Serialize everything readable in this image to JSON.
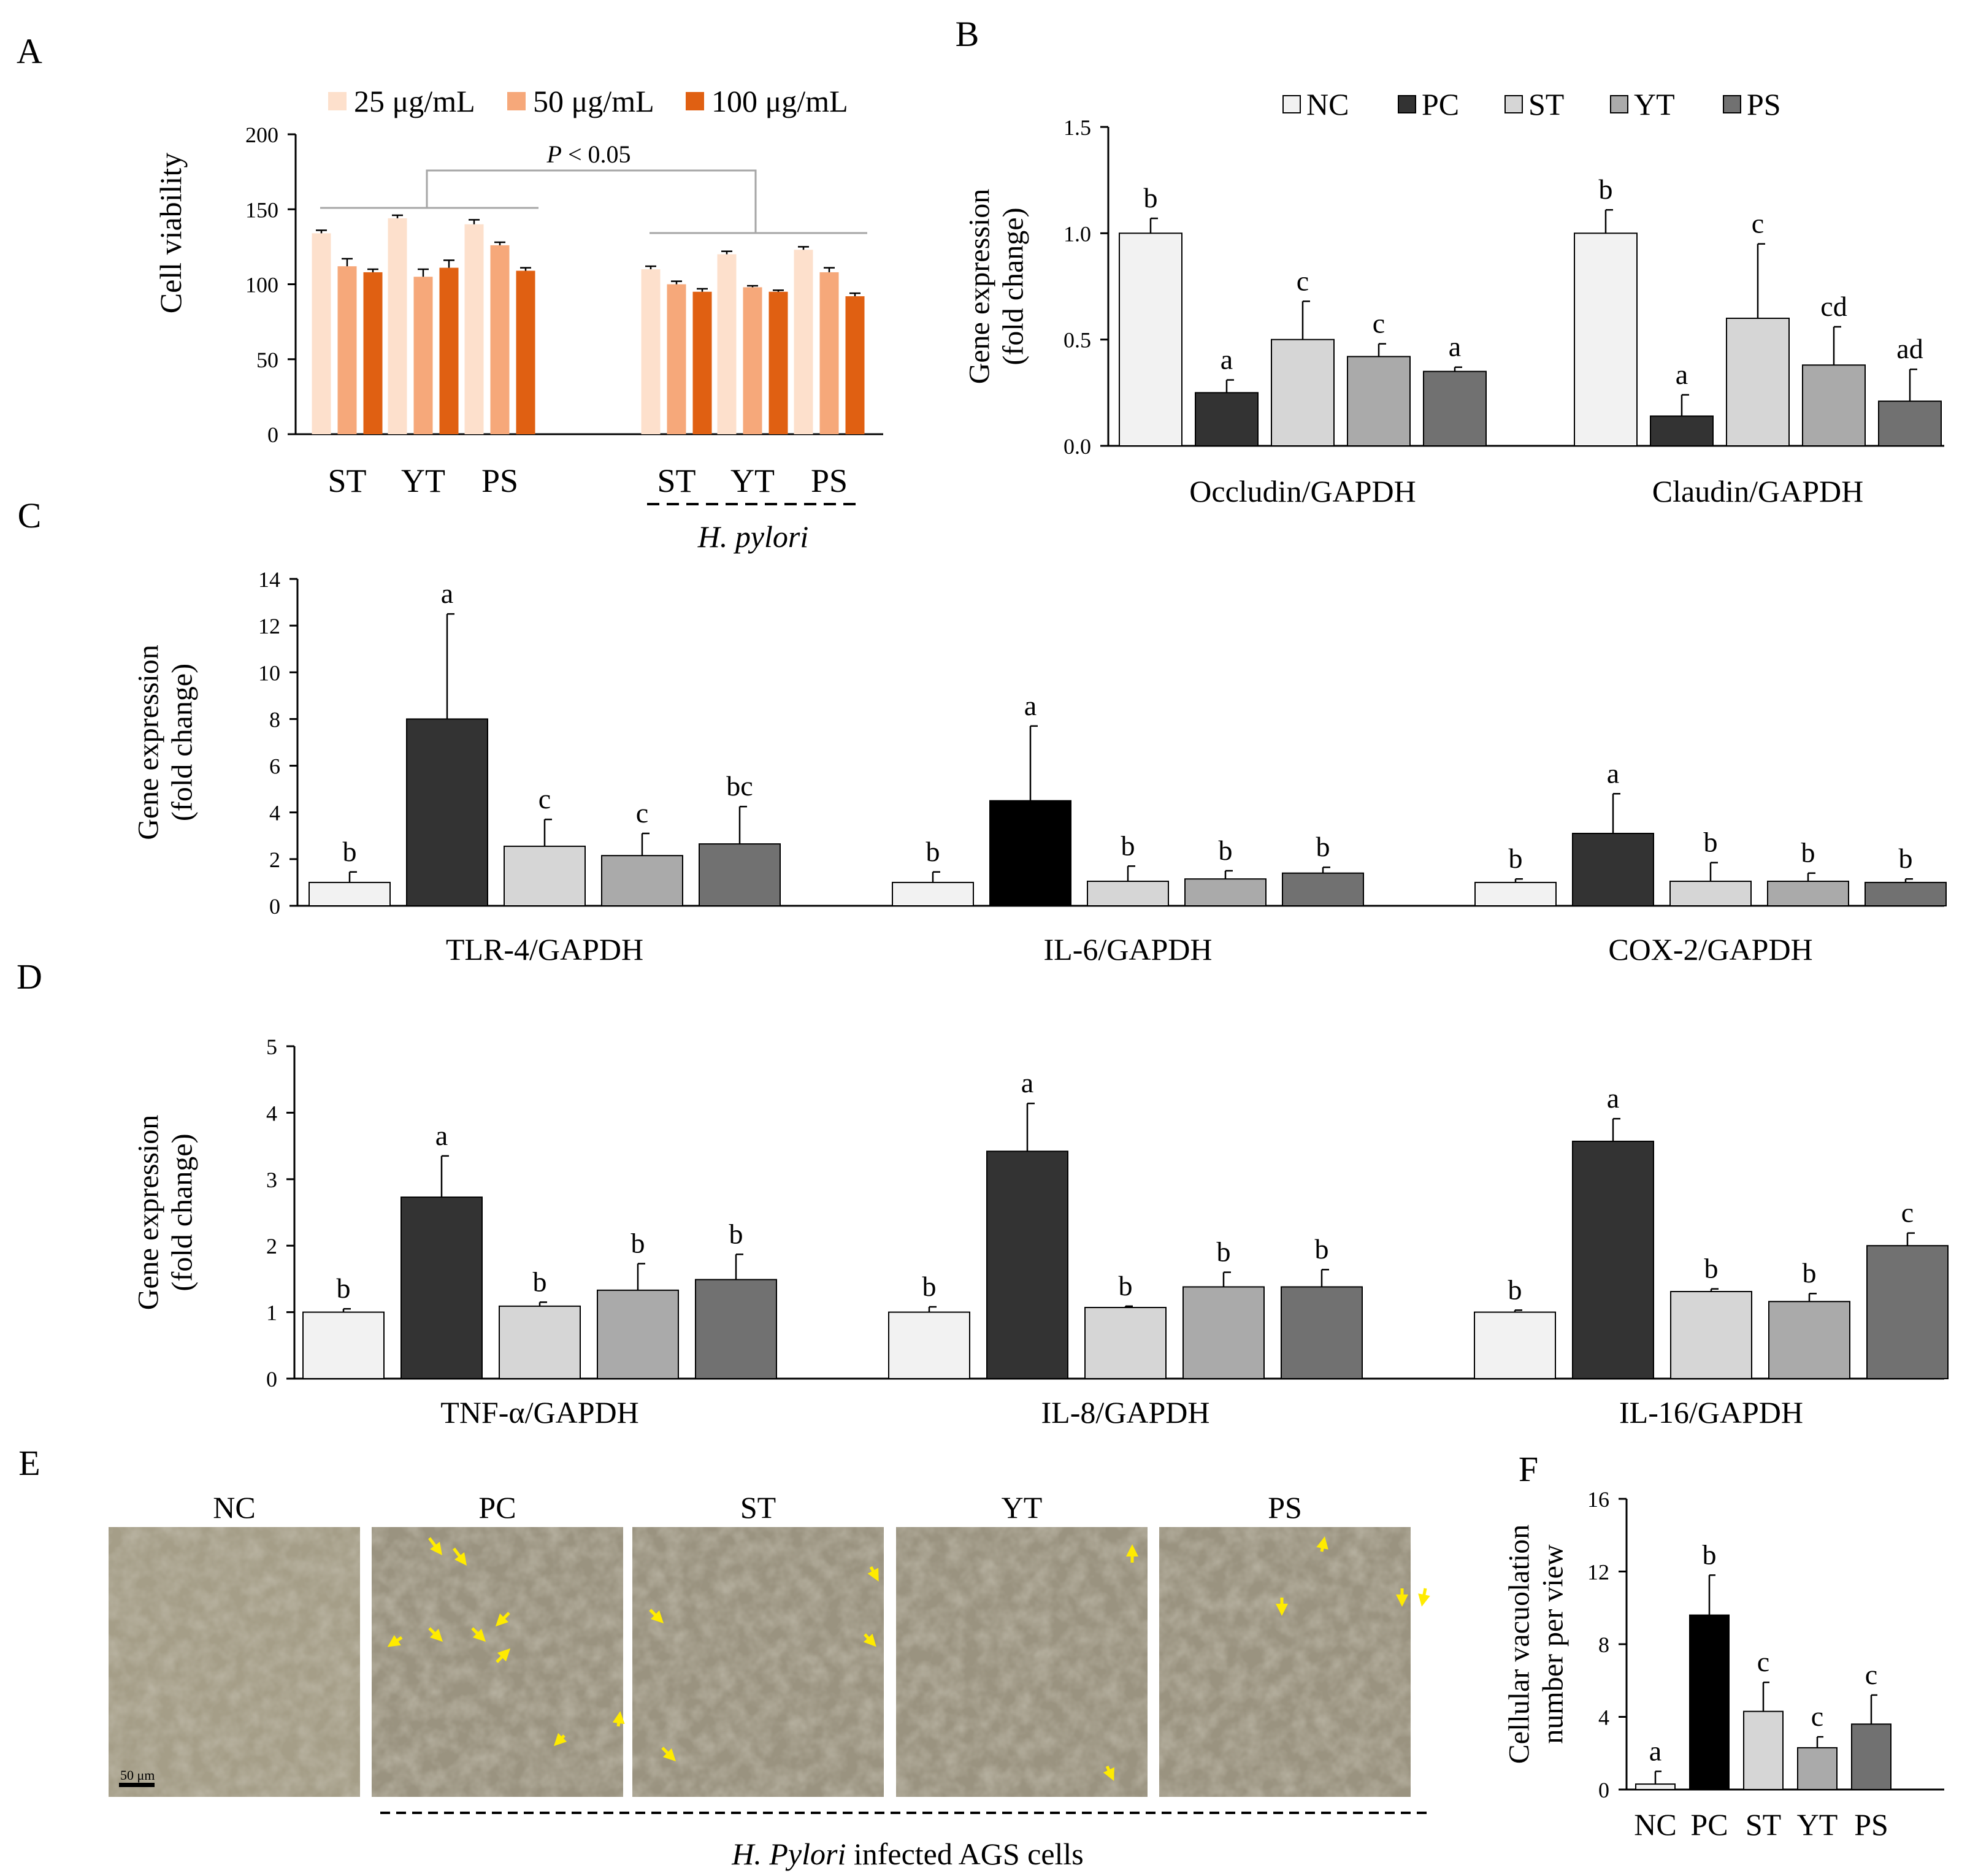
{
  "colors": {
    "dose25": "#fde0cc",
    "dose50": "#f6a87a",
    "dose100": "#e06012",
    "NC": "#f2f2f2",
    "PC": "#333333",
    "ST": "#d6d6d6",
    "YT": "#aaaaaa",
    "PS": "#717171",
    "PC_IL6": "#000000",
    "PC_F": "#000000",
    "axis": "#000000",
    "bracket": "#a6a6a6",
    "arrow": "#ffeb00"
  },
  "chart_data": [
    {
      "id": "A",
      "panel_label": "A",
      "type": "bar",
      "ylabel": "Cell viability",
      "ylim": [
        0,
        200
      ],
      "yticks": [
        "0",
        "50",
        "100",
        "150",
        "200"
      ],
      "legend": [
        "25 μg/mL",
        "50 μg/mL",
        "100 μg/mL"
      ],
      "groups": [
        "ST",
        "YT",
        "PS",
        "ST",
        "YT",
        "PS"
      ],
      "series": [
        {
          "name": "25 μg/mL",
          "values": [
            134,
            144,
            140,
            110,
            120,
            123
          ],
          "errors": [
            2,
            2,
            3,
            2,
            2,
            2
          ]
        },
        {
          "name": "50 μg/mL",
          "values": [
            112,
            105,
            126,
            100,
            98,
            108
          ],
          "errors": [
            5,
            5,
            2,
            2,
            1,
            3
          ]
        },
        {
          "name": "100 μg/mL",
          "values": [
            108,
            111,
            109,
            95,
            95,
            92
          ],
          "errors": [
            2,
            5,
            2,
            2,
            1,
            2
          ]
        }
      ],
      "annotation": "P < 0.05",
      "annotation_p": "P",
      "annotation_rest": " < 0.05",
      "infection_label": "H. pylori"
    },
    {
      "id": "B",
      "panel_label": "B",
      "type": "bar",
      "ylabel": [
        "Gene expression",
        "(fold change)"
      ],
      "ylim": [
        0,
        1.5
      ],
      "yticks": [
        "0.0",
        "0.5",
        "1.0",
        "1.5"
      ],
      "legend": [
        "NC",
        "PC",
        "ST",
        "YT",
        "PS"
      ],
      "categories": [
        "Occludin/GAPDH",
        "Claudin/GAPDH"
      ],
      "series": [
        {
          "name": "NC",
          "values": [
            1.0,
            1.0
          ],
          "errors": [
            0.07,
            0.11
          ],
          "letters": [
            "b",
            "b"
          ]
        },
        {
          "name": "PC",
          "values": [
            0.25,
            0.14
          ],
          "errors": [
            0.06,
            0.1
          ],
          "letters": [
            "a",
            "a"
          ]
        },
        {
          "name": "ST",
          "values": [
            0.5,
            0.6
          ],
          "errors": [
            0.18,
            0.35
          ],
          "letters": [
            "c",
            "c"
          ]
        },
        {
          "name": "YT",
          "values": [
            0.42,
            0.38
          ],
          "errors": [
            0.06,
            0.18
          ],
          "letters": [
            "c",
            "cd"
          ]
        },
        {
          "name": "PS",
          "values": [
            0.35,
            0.21
          ],
          "errors": [
            0.02,
            0.15
          ],
          "letters": [
            "a",
            "ad"
          ]
        }
      ]
    },
    {
      "id": "C",
      "panel_label": "C",
      "type": "bar",
      "ylabel": [
        "Gene expression",
        "(fold change)"
      ],
      "ylim": [
        0,
        14
      ],
      "yticks": [
        "0",
        "2",
        "4",
        "6",
        "8",
        "10",
        "12",
        "14"
      ],
      "categories": [
        "TLR-4/GAPDH",
        "IL-6/GAPDH",
        "COX-2/GAPDH"
      ],
      "series": [
        {
          "name": "NC",
          "values": [
            1.0,
            1.0,
            1.0
          ],
          "errors": [
            0.45,
            0.45,
            0.15
          ],
          "letters": [
            "b",
            "b",
            "b"
          ]
        },
        {
          "name": "PC",
          "values": [
            8.0,
            4.5,
            3.1
          ],
          "errors": [
            4.5,
            3.2,
            1.7
          ],
          "letters": [
            "a",
            "a",
            "a"
          ]
        },
        {
          "name": "ST",
          "values": [
            2.55,
            1.05,
            1.05
          ],
          "errors": [
            1.15,
            0.65,
            0.8
          ],
          "letters": [
            "c",
            "b",
            "b"
          ]
        },
        {
          "name": "YT",
          "values": [
            2.15,
            1.15,
            1.05
          ],
          "errors": [
            0.95,
            0.35,
            0.35
          ],
          "letters": [
            "c",
            "b",
            "b"
          ]
        },
        {
          "name": "PS",
          "values": [
            2.65,
            1.4,
            1.0
          ],
          "errors": [
            1.6,
            0.25,
            0.15
          ],
          "letters": [
            "bc",
            "b",
            "b"
          ]
        }
      ]
    },
    {
      "id": "D",
      "panel_label": "D",
      "type": "bar",
      "ylabel": [
        "Gene expression",
        "(fold change)"
      ],
      "ylim": [
        0,
        5
      ],
      "yticks": [
        "0",
        "1",
        "2",
        "3",
        "4",
        "5"
      ],
      "categories": [
        "TNF-α/GAPDH",
        "IL-8/GAPDH",
        "IL-16/GAPDH"
      ],
      "series": [
        {
          "name": "NC",
          "values": [
            1.0,
            1.0,
            1.0
          ],
          "errors": [
            0.05,
            0.08,
            0.03
          ],
          "letters": [
            "b",
            "b",
            "b"
          ]
        },
        {
          "name": "PC",
          "values": [
            2.73,
            3.42,
            3.57
          ],
          "errors": [
            0.62,
            0.72,
            0.34
          ],
          "letters": [
            "a",
            "a",
            "a"
          ]
        },
        {
          "name": "ST",
          "values": [
            1.09,
            1.07,
            1.31
          ],
          "errors": [
            0.06,
            0.02,
            0.04
          ],
          "letters": [
            "b",
            "b",
            "b"
          ]
        },
        {
          "name": "YT",
          "values": [
            1.33,
            1.38,
            1.16
          ],
          "errors": [
            0.4,
            0.22,
            0.12
          ],
          "letters": [
            "b",
            "b",
            "b"
          ]
        },
        {
          "name": "PS",
          "values": [
            1.49,
            1.38,
            2.0
          ],
          "errors": [
            0.38,
            0.26,
            0.19
          ],
          "letters": [
            "b",
            "b",
            "c"
          ]
        }
      ]
    },
    {
      "id": "F",
      "panel_label": "F",
      "type": "bar",
      "ylabel": [
        "Cellular vacuolation",
        "number per view"
      ],
      "ylim": [
        0,
        16
      ],
      "yticks": [
        "0",
        "4",
        "8",
        "12",
        "16"
      ],
      "categories": [
        "NC",
        "PC",
        "ST",
        "YT",
        "PS"
      ],
      "values": [
        0.3,
        9.6,
        4.3,
        2.3,
        3.6
      ],
      "errors": [
        0.7,
        2.2,
        1.6,
        0.6,
        1.6
      ],
      "letters": [
        "a",
        "b",
        "c",
        "c",
        "c"
      ]
    }
  ],
  "panelE": {
    "panel_label": "E",
    "images": [
      "NC",
      "PC",
      "ST",
      "YT",
      "PS"
    ],
    "scale_bar": "50 μm",
    "caption_italic": "H. Pylori",
    "caption_rest": " infected AGS cells"
  }
}
